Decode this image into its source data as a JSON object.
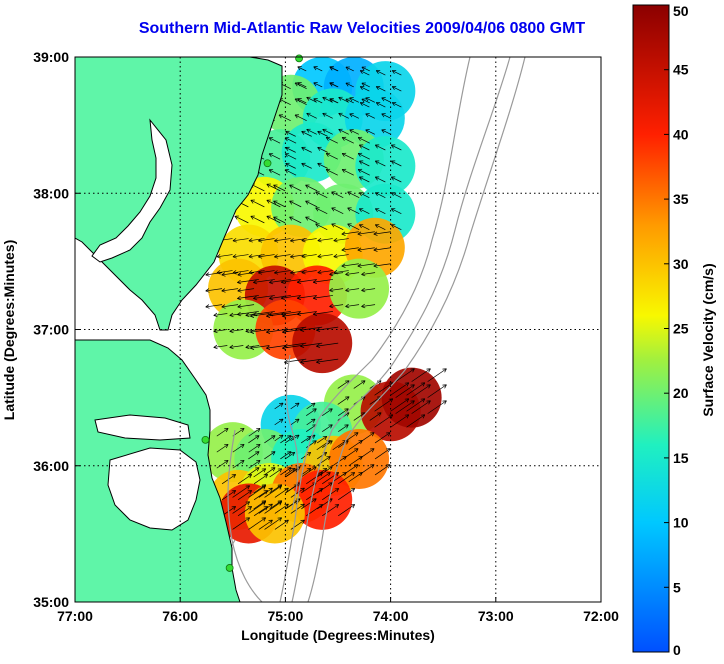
{
  "chart_data": {
    "type": "heatmap",
    "title": "Southern Mid-Atlantic Raw Velocities 2009/04/06 0800 GMT",
    "xlabel": "Longitude (Degrees:Minutes)",
    "ylabel": "Latitude (Degrees:Minutes)",
    "xlim": [
      -77,
      -72
    ],
    "ylim": [
      35,
      39
    ],
    "x_ticks": [
      {
        "value": -77,
        "label": "77:00"
      },
      {
        "value": -76,
        "label": "76:00"
      },
      {
        "value": -75,
        "label": "75:00"
      },
      {
        "value": -74,
        "label": "74:00"
      },
      {
        "value": -73,
        "label": "73:00"
      },
      {
        "value": -72,
        "label": "72:00"
      }
    ],
    "y_ticks": [
      {
        "value": 35,
        "label": "35:00"
      },
      {
        "value": 36,
        "label": "36:00"
      },
      {
        "value": 37,
        "label": "37:00"
      },
      {
        "value": 38,
        "label": "38:00"
      },
      {
        "value": 39,
        "label": "39:00"
      }
    ],
    "grid": true,
    "colorbar": {
      "label": "Surface Velocity (cm/s)",
      "range": [
        0,
        50
      ],
      "ticks": [
        {
          "value": 0,
          "label": "0"
        },
        {
          "value": 5,
          "label": "5"
        },
        {
          "value": 10,
          "label": "10"
        },
        {
          "value": 15,
          "label": "15"
        },
        {
          "value": 20,
          "label": "20"
        },
        {
          "value": 25,
          "label": "25"
        },
        {
          "value": 30,
          "label": "30"
        },
        {
          "value": 35,
          "label": "35"
        },
        {
          "value": 40,
          "label": "40"
        },
        {
          "value": 45,
          "label": "45"
        },
        {
          "value": 50,
          "label": "50"
        }
      ]
    },
    "colors": {
      "land": "#5ff5a8",
      "coast": "#000000",
      "bathymetry": "#9a9a9a",
      "stations": "#33dd33",
      "title": "#0000ee"
    },
    "stations": [
      {
        "lon": -74.87,
        "lat": 38.99
      },
      {
        "lon": -75.17,
        "lat": 38.22
      },
      {
        "lon": -75.76,
        "lat": 36.19
      },
      {
        "lon": -75.53,
        "lat": 35.25
      }
    ],
    "velocity_regions": [
      {
        "name": "northern",
        "cells": [
          {
            "lon": -74.65,
            "lat": 38.78,
            "speed": 10
          },
          {
            "lon": -74.35,
            "lat": 38.78,
            "speed": 8
          },
          {
            "lon": -74.05,
            "lat": 38.75,
            "speed": 12
          },
          {
            "lon": -74.95,
            "lat": 38.65,
            "speed": 20
          },
          {
            "lon": -74.55,
            "lat": 38.55,
            "speed": 15
          },
          {
            "lon": -74.15,
            "lat": 38.55,
            "speed": 12
          },
          {
            "lon": -75.05,
            "lat": 38.25,
            "speed": 18
          },
          {
            "lon": -74.75,
            "lat": 38.3,
            "speed": 15
          },
          {
            "lon": -74.35,
            "lat": 38.25,
            "speed": 20
          },
          {
            "lon": -74.05,
            "lat": 38.2,
            "speed": 15
          },
          {
            "lon": -75.2,
            "lat": 37.9,
            "speed": 26
          },
          {
            "lon": -74.85,
            "lat": 37.9,
            "speed": 20
          },
          {
            "lon": -74.45,
            "lat": 37.85,
            "speed": 20
          },
          {
            "lon": -74.05,
            "lat": 37.85,
            "speed": 15
          },
          {
            "lon": -75.35,
            "lat": 37.55,
            "speed": 28
          },
          {
            "lon": -74.95,
            "lat": 37.55,
            "speed": 30
          },
          {
            "lon": -74.55,
            "lat": 37.55,
            "speed": 26
          },
          {
            "lon": -74.15,
            "lat": 37.6,
            "speed": 32
          },
          {
            "lon": -75.45,
            "lat": 37.3,
            "speed": 30
          },
          {
            "lon": -75.1,
            "lat": 37.25,
            "speed": 45
          },
          {
            "lon": -74.7,
            "lat": 37.25,
            "speed": 40
          },
          {
            "lon": -74.3,
            "lat": 37.3,
            "speed": 22
          },
          {
            "lon": -75.4,
            "lat": 37.0,
            "speed": 22
          },
          {
            "lon": -75.0,
            "lat": 37.0,
            "speed": 38
          },
          {
            "lon": -74.65,
            "lat": 36.9,
            "speed": 46
          }
        ]
      },
      {
        "name": "southern",
        "cells": [
          {
            "lon": -74.35,
            "lat": 36.45,
            "speed": 22
          },
          {
            "lon": -74.0,
            "lat": 36.4,
            "speed": 46
          },
          {
            "lon": -73.8,
            "lat": 36.5,
            "speed": 48
          },
          {
            "lon": -74.95,
            "lat": 36.3,
            "speed": 12
          },
          {
            "lon": -74.65,
            "lat": 36.25,
            "speed": 18
          },
          {
            "lon": -75.5,
            "lat": 36.1,
            "speed": 22
          },
          {
            "lon": -75.2,
            "lat": 36.05,
            "speed": 20
          },
          {
            "lon": -74.85,
            "lat": 36.05,
            "speed": 16
          },
          {
            "lon": -74.55,
            "lat": 36.0,
            "speed": 30
          },
          {
            "lon": -74.3,
            "lat": 36.05,
            "speed": 35
          },
          {
            "lon": -75.45,
            "lat": 35.75,
            "speed": 30
          },
          {
            "lon": -75.15,
            "lat": 35.8,
            "speed": 25
          },
          {
            "lon": -74.85,
            "lat": 35.8,
            "speed": 35
          },
          {
            "lon": -74.65,
            "lat": 35.75,
            "speed": 40
          },
          {
            "lon": -75.35,
            "lat": 35.65,
            "speed": 42
          },
          {
            "lon": -75.1,
            "lat": 35.65,
            "speed": 30
          }
        ]
      }
    ]
  }
}
